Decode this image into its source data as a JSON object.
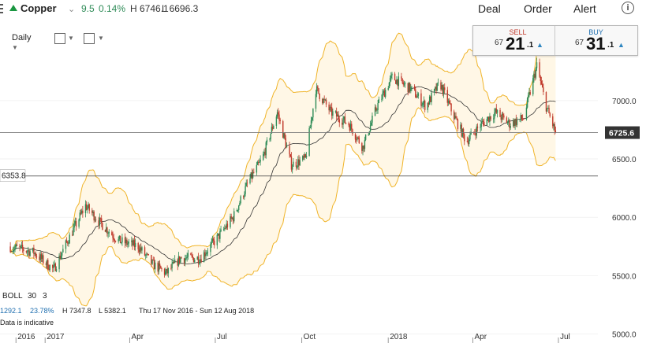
{
  "header": {
    "instrument": "Copper",
    "change": "9.5",
    "change_pct": "0.14%",
    "high": "H 6746.1",
    "low": "L 6696.3",
    "deal_label": "Deal",
    "order_label": "Order",
    "alert_label": "Alert",
    "info_label": "i"
  },
  "controls": {
    "interval": "Daily"
  },
  "ticket": {
    "sell_label": "SELL",
    "sell_small": "67",
    "sell_big": "21",
    "sell_frac": ".1",
    "buy_label": "BUY",
    "buy_small": "67",
    "buy_big": "31",
    "buy_frac": ".1"
  },
  "bottom": {
    "boll_label": "BOLL",
    "boll_period": "30",
    "boll_dev": "3",
    "stat_a": "1292.1",
    "stat_b": "23.78%",
    "stat_h": "H 7347.8",
    "stat_l": "L 5382.1",
    "range": "Thu 17 Nov 2016 - Sun 12 Aug 2018",
    "note": "Data is indicative"
  },
  "colors": {
    "up": "#2e8b57",
    "down": "#c0392b",
    "band": "#f0b429",
    "band_fill": "#fff7e6",
    "ma": "#333333"
  },
  "chart_data": {
    "type": "candlestick",
    "ylim": [
      4950,
      7700
    ],
    "yticks": [
      5000,
      5500,
      6000,
      6500,
      7000
    ],
    "ytick_labels": [
      "5000.0",
      "5500.0",
      "6000.0",
      "6500.0",
      "7000.0"
    ],
    "xticks": [
      {
        "label": "2016",
        "value": "2016-12-01"
      },
      {
        "label": "2017",
        "value": "2017-01-01"
      },
      {
        "label": "Apr",
        "value": "2017-04-01"
      },
      {
        "label": "Jul",
        "value": "2017-07-01"
      },
      {
        "label": "Oct",
        "value": "2017-10-01"
      },
      {
        "label": "2018",
        "value": "2018-01-01"
      },
      {
        "label": "Apr",
        "value": "2018-04-01"
      },
      {
        "label": "Jul",
        "value": "2018-07-01"
      }
    ],
    "current_price": 6725.6,
    "current_label": "6725.6",
    "ref_price": 6353.8,
    "ref_label": "6353.8",
    "indicator": "Bollinger Bands (30, 3)",
    "close_path": [
      {
        "date": "2016-11-25",
        "close": 5750
      },
      {
        "date": "2016-12-20",
        "close": 5700
      },
      {
        "date": "2017-01-10",
        "close": 5550
      },
      {
        "date": "2017-01-25",
        "close": 5800
      },
      {
        "date": "2017-02-13",
        "close": 6100
      },
      {
        "date": "2017-03-01",
        "close": 5950
      },
      {
        "date": "2017-03-20",
        "close": 5800
      },
      {
        "date": "2017-04-10",
        "close": 5750
      },
      {
        "date": "2017-04-25",
        "close": 5600
      },
      {
        "date": "2017-05-10",
        "close": 5520
      },
      {
        "date": "2017-05-25",
        "close": 5650
      },
      {
        "date": "2017-06-15",
        "close": 5650
      },
      {
        "date": "2017-07-01",
        "close": 5800
      },
      {
        "date": "2017-07-20",
        "close": 6000
      },
      {
        "date": "2017-08-05",
        "close": 6300
      },
      {
        "date": "2017-08-20",
        "close": 6500
      },
      {
        "date": "2017-09-05",
        "close": 6900
      },
      {
        "date": "2017-09-20",
        "close": 6450
      },
      {
        "date": "2017-10-05",
        "close": 6500
      },
      {
        "date": "2017-10-16",
        "close": 7100
      },
      {
        "date": "2017-11-01",
        "close": 6900
      },
      {
        "date": "2017-11-20",
        "close": 6800
      },
      {
        "date": "2017-12-05",
        "close": 6600
      },
      {
        "date": "2017-12-20",
        "close": 6950
      },
      {
        "date": "2018-01-05",
        "close": 7200
      },
      {
        "date": "2018-01-25",
        "close": 7100
      },
      {
        "date": "2018-02-10",
        "close": 6950
      },
      {
        "date": "2018-02-25",
        "close": 7150
      },
      {
        "date": "2018-03-10",
        "close": 6900
      },
      {
        "date": "2018-03-25",
        "close": 6650
      },
      {
        "date": "2018-04-10",
        "close": 6800
      },
      {
        "date": "2018-04-25",
        "close": 6900
      },
      {
        "date": "2018-05-10",
        "close": 6800
      },
      {
        "date": "2018-05-25",
        "close": 6850
      },
      {
        "date": "2018-06-08",
        "close": 7300
      },
      {
        "date": "2018-06-18",
        "close": 6950
      },
      {
        "date": "2018-06-28",
        "close": 6725.6
      }
    ]
  }
}
